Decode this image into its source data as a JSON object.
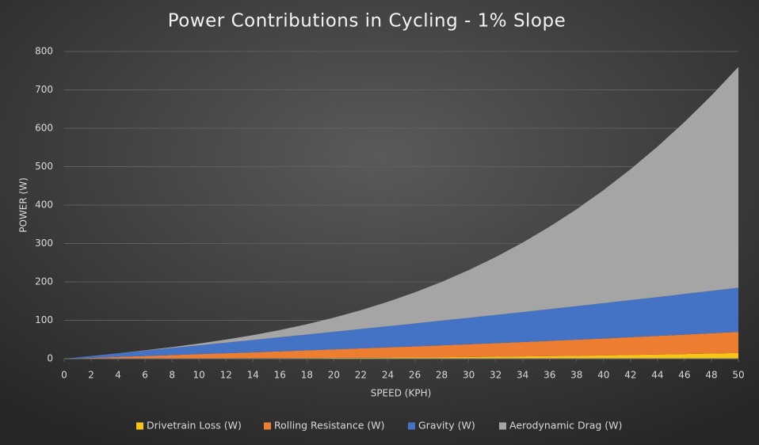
{
  "chart_data": {
    "type": "stacked_area",
    "title": "Power Contributions in Cycling - 1% Slope",
    "x_label": "SPEED (KPH)",
    "y_label": "POWER (W)",
    "x": [
      0,
      2,
      4,
      6,
      8,
      10,
      12,
      14,
      16,
      18,
      20,
      22,
      24,
      26,
      28,
      30,
      32,
      34,
      36,
      38,
      40,
      42,
      44,
      46,
      48,
      50
    ],
    "xlim": [
      0,
      50
    ],
    "xticks": [
      0,
      2,
      4,
      6,
      8,
      10,
      12,
      14,
      16,
      18,
      20,
      22,
      24,
      26,
      28,
      30,
      32,
      34,
      36,
      38,
      40,
      42,
      44,
      46,
      48,
      50
    ],
    "ylim": [
      0,
      800
    ],
    "yticks": [
      0,
      100,
      200,
      300,
      400,
      500,
      600,
      700,
      800
    ],
    "grid": true,
    "legend": "bottom",
    "series": [
      {
        "name": "Drivetrain Loss (W)",
        "color": "#f5c518",
        "values": [
          0,
          0.1,
          0.3,
          0.4,
          0.6,
          0.8,
          1.0,
          1.2,
          1.5,
          1.8,
          2.1,
          2.5,
          2.9,
          3.4,
          3.9,
          4.5,
          5.2,
          5.9,
          6.7,
          7.6,
          8.6,
          9.7,
          10.8,
          12.1,
          13.4,
          14.9
        ]
      },
      {
        "name": "Rolling Resistance (W)",
        "color": "#ed7d31",
        "values": [
          0,
          2.2,
          4.4,
          6.6,
          8.8,
          11,
          13.2,
          15.4,
          17.6,
          19.8,
          22,
          24.2,
          26.4,
          28.6,
          30.8,
          33,
          35.2,
          37.4,
          39.6,
          41.8,
          44,
          46.2,
          48.4,
          50.6,
          52.8,
          55
        ]
      },
      {
        "name": "Gravity (W)",
        "color": "#4472c4",
        "values": [
          0,
          4.6,
          9.2,
          13.8,
          18.4,
          23,
          27.6,
          32.2,
          36.8,
          41.4,
          46,
          50.6,
          55.2,
          59.8,
          64.4,
          69,
          73.6,
          78.2,
          82.8,
          87.4,
          92,
          96.6,
          101.2,
          105.8,
          110.4,
          115
        ]
      },
      {
        "name": "Aerodynamic Drag (W)",
        "color": "#a5a5a5",
        "values": [
          0,
          0.04,
          0.3,
          1.0,
          2.4,
          4.6,
          8.0,
          12.6,
          18.8,
          26.8,
          36.8,
          49,
          63.6,
          80.9,
          101,
          124.2,
          150.7,
          180.8,
          214.6,
          252.4,
          294.4,
          340.8,
          391.8,
          447.7,
          508.7,
          575
        ]
      }
    ]
  }
}
